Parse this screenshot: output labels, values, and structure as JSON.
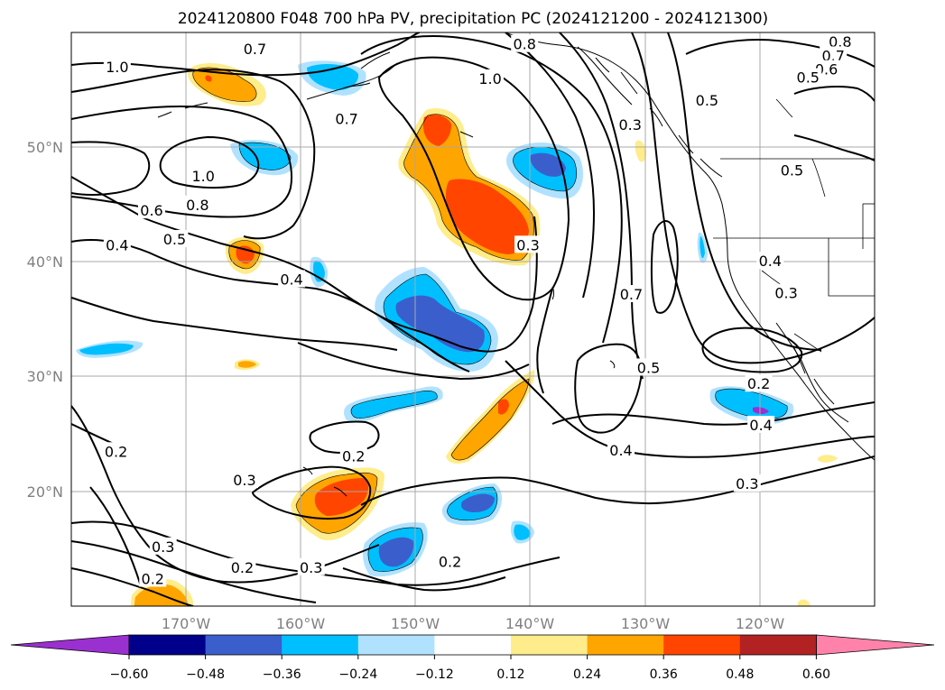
{
  "title": "2024120800 F048 700 hPa PV, precipitation PC (2024121200 - 2024121300)",
  "map": {
    "lon_range": [
      -180,
      -110
    ],
    "lat_range": [
      10,
      60
    ],
    "lon_ticks": [
      {
        "lon": -170,
        "label": "170°W"
      },
      {
        "lon": -160,
        "label": "160°W"
      },
      {
        "lon": -150,
        "label": "150°W"
      },
      {
        "lon": -140,
        "label": "140°W"
      },
      {
        "lon": -130,
        "label": "130°W"
      },
      {
        "lon": -120,
        "label": "120°W"
      }
    ],
    "lat_ticks": [
      {
        "lat": 20,
        "label": "20°N"
      },
      {
        "lat": 30,
        "label": "30°N"
      },
      {
        "lat": 40,
        "label": "40°N"
      },
      {
        "lat": 50,
        "label": "50°N"
      }
    ],
    "gridlines": true,
    "fill_colors": {
      "-0.72": "#9b30d0",
      "-0.60": "#00008b",
      "-0.48": "#3a5fcd",
      "-0.36": "#00bfff",
      "-0.24": "#b0e2ff",
      "0.24": "#ffec8b",
      "0.36": "#ffa500",
      "0.48": "#ff4500",
      "0.60": "#b22222",
      "0.72": "#ff82ab"
    },
    "contour_labels": [
      {
        "text": "1.0",
        "lon": -176.0,
        "lat": 57.0
      },
      {
        "text": "1.0",
        "lon": -143.5,
        "lat": 56.0
      },
      {
        "text": "0.8",
        "lon": -140.5,
        "lat": 59.0
      },
      {
        "text": "0.7",
        "lon": -164.0,
        "lat": 58.6
      },
      {
        "text": "0.7",
        "lon": -156.0,
        "lat": 52.5
      },
      {
        "text": "1.0",
        "lon": -168.5,
        "lat": 47.5
      },
      {
        "text": "0.8",
        "lon": -169.0,
        "lat": 45.0
      },
      {
        "text": "0.6",
        "lon": -173.0,
        "lat": 44.5
      },
      {
        "text": "0.5",
        "lon": -171.0,
        "lat": 42.0
      },
      {
        "text": "0.4",
        "lon": -176.0,
        "lat": 41.5
      },
      {
        "text": "0.4",
        "lon": -160.8,
        "lat": 38.5
      },
      {
        "text": "0.3",
        "lon": -131.3,
        "lat": 52.0
      },
      {
        "text": "0.3",
        "lon": -140.2,
        "lat": 41.5
      },
      {
        "text": "0.8",
        "lon": -113.0,
        "lat": 59.2
      },
      {
        "text": "0.7",
        "lon": -113.6,
        "lat": 58.0
      },
      {
        "text": "0.6",
        "lon": -114.2,
        "lat": 56.8
      },
      {
        "text": "0.5",
        "lon": -115.8,
        "lat": 56.1
      },
      {
        "text": "0.5",
        "lon": -124.6,
        "lat": 54.1
      },
      {
        "text": "0.5",
        "lon": -117.2,
        "lat": 48.0
      },
      {
        "text": "0.4",
        "lon": -119.1,
        "lat": 40.1
      },
      {
        "text": "0.3",
        "lon": -117.7,
        "lat": 37.3
      },
      {
        "text": "0.7",
        "lon": -131.2,
        "lat": 37.2
      },
      {
        "text": "0.5",
        "lon": -129.7,
        "lat": 30.8
      },
      {
        "text": "0.2",
        "lon": -120.1,
        "lat": 29.4
      },
      {
        "text": "0.4",
        "lon": -119.9,
        "lat": 25.8
      },
      {
        "text": "0.4",
        "lon": -132.1,
        "lat": 23.6
      },
      {
        "text": "0.3",
        "lon": -121.1,
        "lat": 20.7
      },
      {
        "text": "0.2",
        "lon": -176.1,
        "lat": 23.5
      },
      {
        "text": "0.2",
        "lon": -155.4,
        "lat": 23.1
      },
      {
        "text": "0.3",
        "lon": -164.9,
        "lat": 21.0
      },
      {
        "text": "0.3",
        "lon": -172.0,
        "lat": 15.2
      },
      {
        "text": "0.2",
        "lon": -172.9,
        "lat": 12.4
      },
      {
        "text": "0.2",
        "lon": -165.1,
        "lat": 13.4
      },
      {
        "text": "0.3",
        "lon": -159.1,
        "lat": 13.4
      },
      {
        "text": "0.2",
        "lon": -147.0,
        "lat": 13.9
      }
    ]
  },
  "colorbar": {
    "ticks": [
      "−0.60",
      "−0.48",
      "−0.36",
      "−0.24",
      "−0.12",
      "0.12",
      "0.24",
      "0.36",
      "0.48",
      "0.60"
    ],
    "colors": [
      "#9b30d0",
      "#00008b",
      "#3a5fcd",
      "#00bfff",
      "#b0e2ff",
      "#ffffff",
      "#ffec8b",
      "#ffa500",
      "#ff4500",
      "#b22222",
      "#ff82ab"
    ]
  }
}
